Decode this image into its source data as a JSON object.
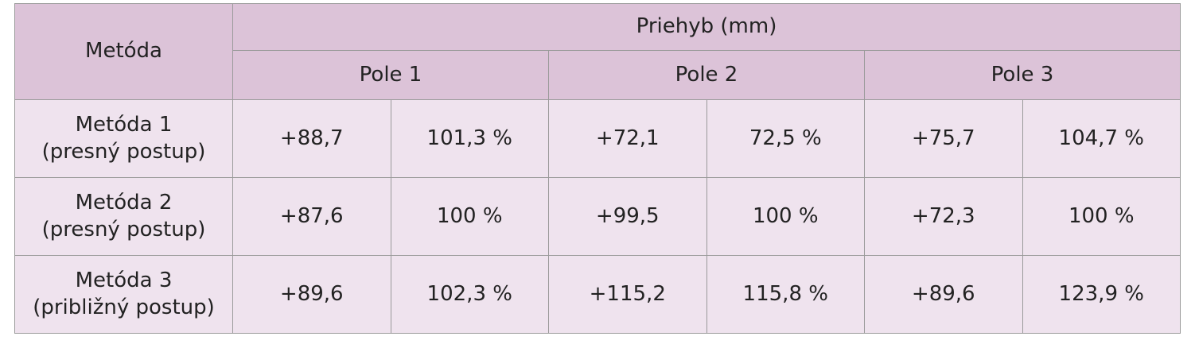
{
  "table": {
    "header": {
      "method": "Metóda",
      "group": "Priehyb (mm)",
      "fields": [
        "Pole 1",
        "Pole 2",
        "Pole 3"
      ]
    },
    "rows": [
      {
        "method": "Metóda 1",
        "note": "(presný postup)",
        "cells": [
          "+88,7",
          "101,3 %",
          "+72,1",
          "72,5 %",
          "+75,7",
          "104,7 %"
        ]
      },
      {
        "method": "Metóda 2",
        "note": "(presný postup)",
        "cells": [
          "+87,6",
          "100 %",
          "+99,5",
          "100 %",
          "+72,3",
          "100 %"
        ]
      },
      {
        "method": "Metóda 3",
        "note": "(približný postup)",
        "cells": [
          "+89,6",
          "102,3 %",
          "+115,2",
          "115,8 %",
          "+89,6",
          "123,9 %"
        ]
      }
    ]
  }
}
